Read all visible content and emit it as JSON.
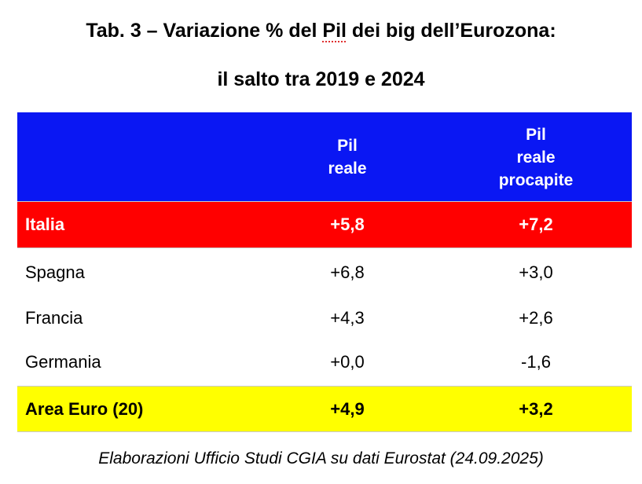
{
  "title": {
    "line1_prefix": "Tab. 3 – Variazione % del ",
    "line1_flagged": "Pil",
    "line1_suffix": " dei big dell’Eurozona:",
    "line2": "il salto tra 2019 e 2024"
  },
  "table": {
    "header": {
      "pil_reale": [
        "Pil",
        "reale"
      ],
      "pil_procapite": [
        "Pil",
        "reale",
        "procapite"
      ]
    },
    "rows": [
      {
        "country": "Italia",
        "pil_reale": "+5,8",
        "pil_procapite": "+7,2"
      },
      {
        "country": "Spagna",
        "pil_reale": "+6,8",
        "pil_procapite": "+3,0"
      },
      {
        "country": "Francia",
        "pil_reale": "+4,3",
        "pil_procapite": "+2,6"
      },
      {
        "country": "Germania",
        "pil_reale": "+0,0",
        "pil_procapite": "-1,6"
      },
      {
        "country": "Area Euro (20)",
        "pil_reale": "+4,9",
        "pil_procapite": "+3,2"
      }
    ]
  },
  "footer": "Elaborazioni Ufficio Studi CGIA su dati Eurostat (24.09.2025)",
  "colors": {
    "header_bg": "#0a17f3",
    "italia_bg": "#ff0000",
    "euro_bg": "#ffff00"
  }
}
